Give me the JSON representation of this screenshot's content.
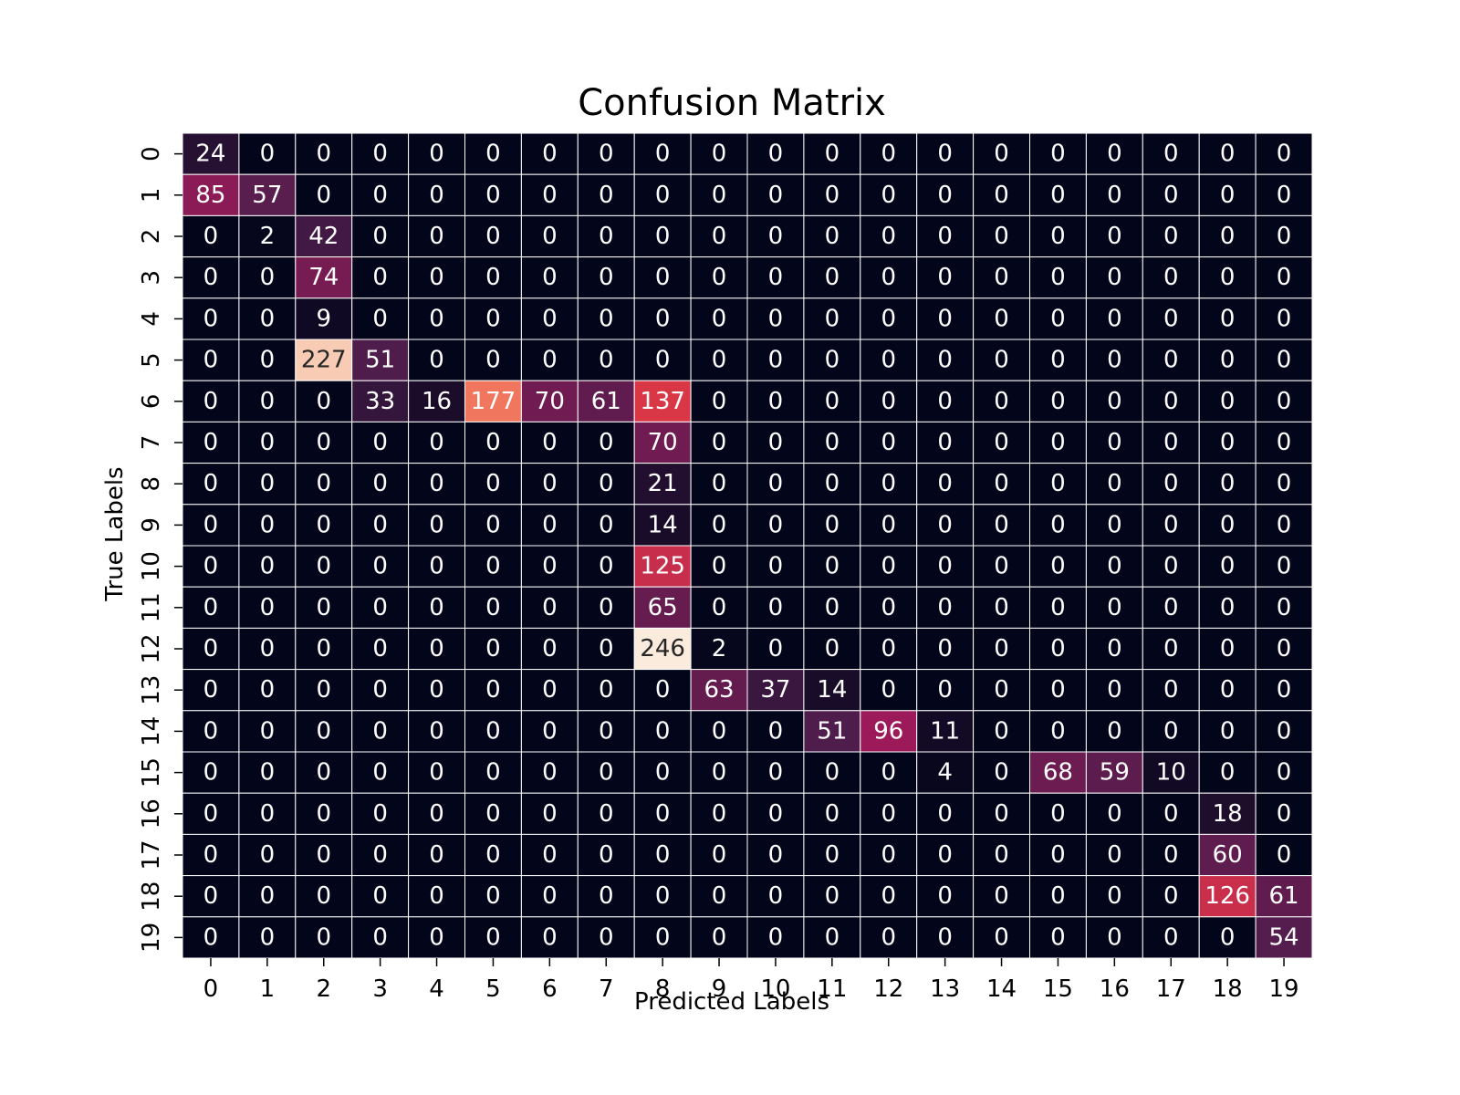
{
  "chart_data": {
    "type": "heatmap",
    "title": "Confusion Matrix",
    "xlabel": "Predicted Labels",
    "ylabel": "True Labels",
    "x_categories": [
      "0",
      "1",
      "2",
      "3",
      "4",
      "5",
      "6",
      "7",
      "8",
      "9",
      "10",
      "11",
      "12",
      "13",
      "14",
      "15",
      "16",
      "17",
      "18",
      "19"
    ],
    "y_categories": [
      "0",
      "1",
      "2",
      "3",
      "4",
      "5",
      "6",
      "7",
      "8",
      "9",
      "10",
      "11",
      "12",
      "13",
      "14",
      "15",
      "16",
      "17",
      "18",
      "19"
    ],
    "values": [
      [
        24,
        0,
        0,
        0,
        0,
        0,
        0,
        0,
        0,
        0,
        0,
        0,
        0,
        0,
        0,
        0,
        0,
        0,
        0,
        0
      ],
      [
        85,
        57,
        0,
        0,
        0,
        0,
        0,
        0,
        0,
        0,
        0,
        0,
        0,
        0,
        0,
        0,
        0,
        0,
        0,
        0
      ],
      [
        0,
        2,
        42,
        0,
        0,
        0,
        0,
        0,
        0,
        0,
        0,
        0,
        0,
        0,
        0,
        0,
        0,
        0,
        0,
        0
      ],
      [
        0,
        0,
        74,
        0,
        0,
        0,
        0,
        0,
        0,
        0,
        0,
        0,
        0,
        0,
        0,
        0,
        0,
        0,
        0,
        0
      ],
      [
        0,
        0,
        9,
        0,
        0,
        0,
        0,
        0,
        0,
        0,
        0,
        0,
        0,
        0,
        0,
        0,
        0,
        0,
        0,
        0
      ],
      [
        0,
        0,
        227,
        51,
        0,
        0,
        0,
        0,
        0,
        0,
        0,
        0,
        0,
        0,
        0,
        0,
        0,
        0,
        0,
        0
      ],
      [
        0,
        0,
        0,
        33,
        16,
        177,
        70,
        61,
        137,
        0,
        0,
        0,
        0,
        0,
        0,
        0,
        0,
        0,
        0,
        0
      ],
      [
        0,
        0,
        0,
        0,
        0,
        0,
        0,
        0,
        70,
        0,
        0,
        0,
        0,
        0,
        0,
        0,
        0,
        0,
        0,
        0
      ],
      [
        0,
        0,
        0,
        0,
        0,
        0,
        0,
        0,
        21,
        0,
        0,
        0,
        0,
        0,
        0,
        0,
        0,
        0,
        0,
        0
      ],
      [
        0,
        0,
        0,
        0,
        0,
        0,
        0,
        0,
        14,
        0,
        0,
        0,
        0,
        0,
        0,
        0,
        0,
        0,
        0,
        0
      ],
      [
        0,
        0,
        0,
        0,
        0,
        0,
        0,
        0,
        125,
        0,
        0,
        0,
        0,
        0,
        0,
        0,
        0,
        0,
        0,
        0
      ],
      [
        0,
        0,
        0,
        0,
        0,
        0,
        0,
        0,
        65,
        0,
        0,
        0,
        0,
        0,
        0,
        0,
        0,
        0,
        0,
        0
      ],
      [
        0,
        0,
        0,
        0,
        0,
        0,
        0,
        0,
        246,
        2,
        0,
        0,
        0,
        0,
        0,
        0,
        0,
        0,
        0,
        0
      ],
      [
        0,
        0,
        0,
        0,
        0,
        0,
        0,
        0,
        0,
        63,
        37,
        14,
        0,
        0,
        0,
        0,
        0,
        0,
        0,
        0
      ],
      [
        0,
        0,
        0,
        0,
        0,
        0,
        0,
        0,
        0,
        0,
        0,
        51,
        96,
        11,
        0,
        0,
        0,
        0,
        0,
        0
      ],
      [
        0,
        0,
        0,
        0,
        0,
        0,
        0,
        0,
        0,
        0,
        0,
        0,
        0,
        4,
        0,
        68,
        59,
        10,
        0,
        0
      ],
      [
        0,
        0,
        0,
        0,
        0,
        0,
        0,
        0,
        0,
        0,
        0,
        0,
        0,
        0,
        0,
        0,
        0,
        0,
        18,
        0
      ],
      [
        0,
        0,
        0,
        0,
        0,
        0,
        0,
        0,
        0,
        0,
        0,
        0,
        0,
        0,
        0,
        0,
        0,
        0,
        60,
        0
      ],
      [
        0,
        0,
        0,
        0,
        0,
        0,
        0,
        0,
        0,
        0,
        0,
        0,
        0,
        0,
        0,
        0,
        0,
        0,
        126,
        61
      ],
      [
        0,
        0,
        0,
        0,
        0,
        0,
        0,
        0,
        0,
        0,
        0,
        0,
        0,
        0,
        0,
        0,
        0,
        0,
        0,
        54
      ]
    ],
    "vmin": 0,
    "vmax": 246,
    "colormap": "rocket",
    "colormap_stops": [
      "#03051a",
      "#4c1d4b",
      "#a11a5b",
      "#e83f3f",
      "#f69c73",
      "#faebdd"
    ],
    "gridline_color": "#ffffff",
    "annotation_dark_text_color": "#262626",
    "annotation_light_text_color": "#ffffff",
    "colorbar": false
  }
}
